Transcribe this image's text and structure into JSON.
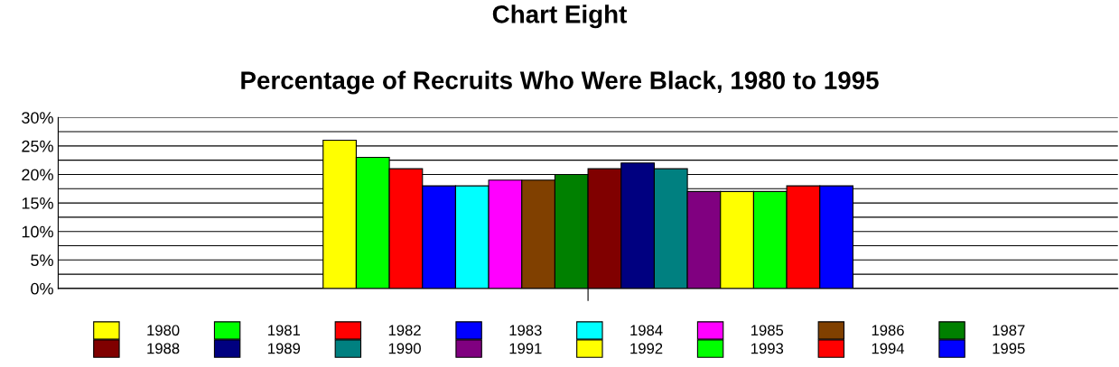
{
  "chart_data": {
    "type": "bar",
    "title": "Chart Eight",
    "subtitle": "Percentage of Recruits Who Were Black, 1980 to 1995",
    "categories": [
      null
    ],
    "series": [
      {
        "name": "1980",
        "color": "#ffff00",
        "values": [
          26
        ]
      },
      {
        "name": "1981",
        "color": "#00ff00",
        "values": [
          23
        ]
      },
      {
        "name": "1982",
        "color": "#ff0000",
        "values": [
          21
        ]
      },
      {
        "name": "1983",
        "color": "#0000ff",
        "values": [
          18
        ]
      },
      {
        "name": "1984",
        "color": "#00ffff",
        "values": [
          18
        ]
      },
      {
        "name": "1985",
        "color": "#ff00ff",
        "values": [
          19
        ]
      },
      {
        "name": "1986",
        "color": "#804000",
        "values": [
          19
        ]
      },
      {
        "name": "1987",
        "color": "#008000",
        "values": [
          20
        ]
      },
      {
        "name": "1988",
        "color": "#800000",
        "values": [
          21
        ]
      },
      {
        "name": "1989",
        "color": "#000080",
        "values": [
          22
        ]
      },
      {
        "name": "1990",
        "color": "#008080",
        "values": [
          21
        ]
      },
      {
        "name": "1991",
        "color": "#800080",
        "values": [
          17
        ]
      },
      {
        "name": "1992",
        "color": "#ffff00",
        "values": [
          17
        ]
      },
      {
        "name": "1993",
        "color": "#00ff00",
        "values": [
          17
        ]
      },
      {
        "name": "1994",
        "color": "#ff0000",
        "values": [
          18
        ]
      },
      {
        "name": "1995",
        "color": "#0000ff",
        "values": [
          18
        ]
      }
    ],
    "ylim": [
      0,
      30
    ],
    "yticks": [
      {
        "value": 0,
        "label": "0%"
      },
      {
        "value": 2.5,
        "label": null
      },
      {
        "value": 5,
        "label": "5%"
      },
      {
        "value": 7.5,
        "label": null
      },
      {
        "value": 10,
        "label": "10%"
      },
      {
        "value": 12.5,
        "label": null
      },
      {
        "value": 15,
        "label": "15%"
      },
      {
        "value": 17.5,
        "label": null
      },
      {
        "value": 20,
        "label": "20%"
      },
      {
        "value": 22.5,
        "label": null
      },
      {
        "value": 25,
        "label": "25%"
      },
      {
        "value": 27.5,
        "label": null
      },
      {
        "value": 30,
        "label": "30%"
      }
    ],
    "grid": "y",
    "legend": "bottom"
  }
}
